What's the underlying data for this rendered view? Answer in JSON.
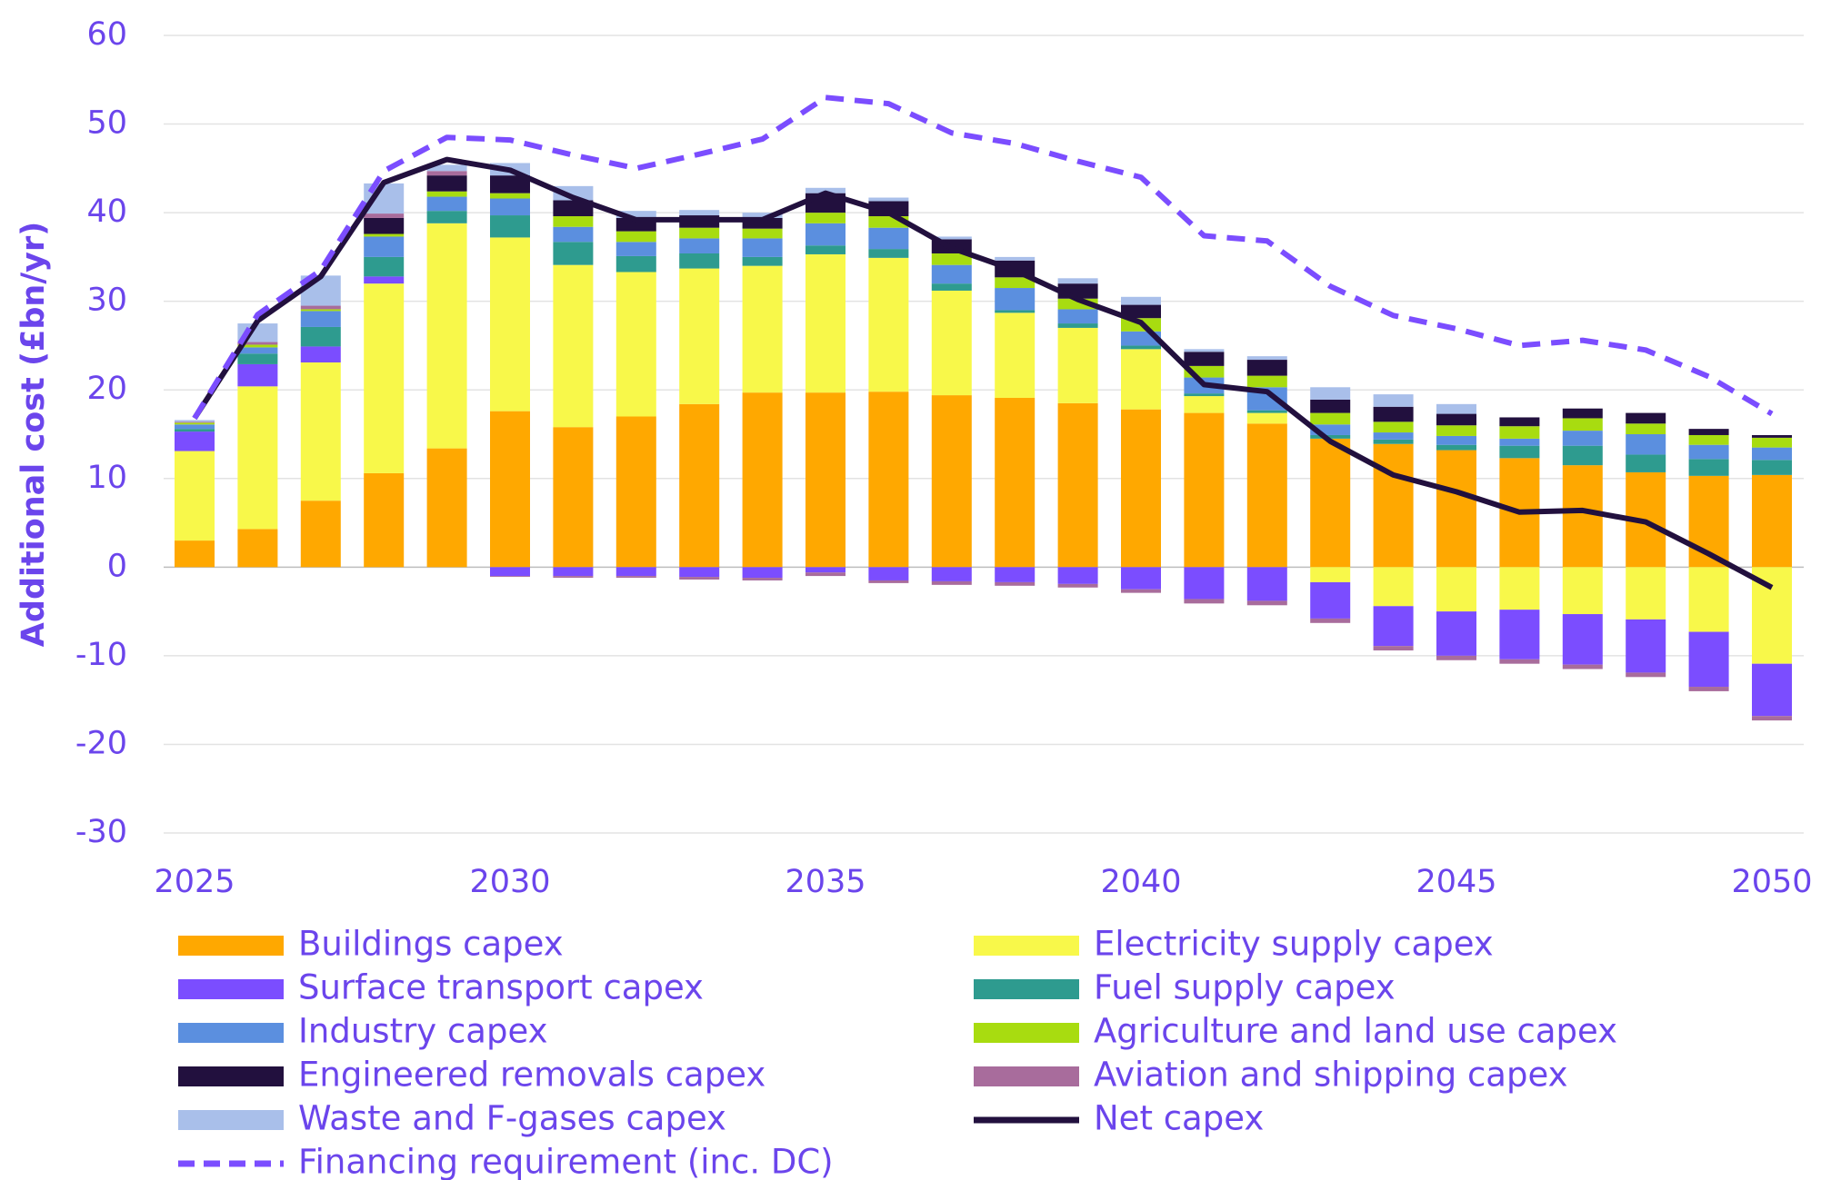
{
  "chart_data": {
    "type": "bar",
    "y_label": "Additional cost (£bn/yr)",
    "x": [
      2025,
      2026,
      2027,
      2028,
      2029,
      2030,
      2031,
      2032,
      2033,
      2034,
      2035,
      2036,
      2037,
      2038,
      2039,
      2040,
      2041,
      2042,
      2043,
      2044,
      2045,
      2046,
      2047,
      2048,
      2049,
      2050
    ],
    "xlim": [
      2025,
      2050
    ],
    "xticks": [
      2025,
      2030,
      2035,
      2040,
      2045,
      2050
    ],
    "ylim": [
      -30,
      60
    ],
    "yticks": [
      -30,
      -20,
      -10,
      0,
      10,
      20,
      30,
      40,
      50,
      60
    ],
    "grid": true,
    "series": [
      {
        "name": "Buildings capex",
        "color": "#ffa800",
        "values": [
          3,
          4.3,
          7.5,
          10.6,
          13.4,
          17.6,
          15.8,
          17,
          18.4,
          19.7,
          19.7,
          19.8,
          19.4,
          19.1,
          18.5,
          17.8,
          17.4,
          16.2,
          14.5,
          13.9,
          13.2,
          12.3,
          11.5,
          10.7,
          10.3,
          10.4
        ]
      },
      {
        "name": "Electricity supply capex",
        "color": "#f8f84a",
        "values": [
          10.1,
          16.1,
          15.6,
          21.4,
          25.4,
          19.6,
          18.3,
          16.3,
          15.3,
          14.3,
          15.6,
          15.1,
          11.8,
          9.6,
          8.5,
          6.8,
          1.9,
          1.2,
          -1.7,
          -4.4,
          -5,
          -4.8,
          -5.3,
          -5.9,
          -7.3,
          -10.9
        ]
      },
      {
        "name": "Surface transport capex",
        "color": "#7b4dff",
        "values": [
          2.2,
          2.5,
          1.8,
          0.8,
          0,
          -1,
          -1,
          -1,
          -1.1,
          -1.2,
          -0.6,
          -1.5,
          -1.6,
          -1.7,
          -1.9,
          -2.5,
          -3.6,
          -3.8,
          -4.1,
          -4.5,
          -5,
          -5.6,
          -5.7,
          -6,
          -6.2,
          -5.9
        ]
      },
      {
        "name": "Fuel supply capex",
        "color": "#2e9b8f",
        "values": [
          0.3,
          1.2,
          2.2,
          2.2,
          1.4,
          2.5,
          2.6,
          1.8,
          1.7,
          1,
          1,
          1,
          0.8,
          0.3,
          0.5,
          0.4,
          0.3,
          0.3,
          0.4,
          0.5,
          0.6,
          1.4,
          2.2,
          2,
          1.9,
          1.7
        ]
      },
      {
        "name": "Industry capex",
        "color": "#5b8fdf",
        "values": [
          0.5,
          0.7,
          1.8,
          2.3,
          1.6,
          1.9,
          1.7,
          1.6,
          1.7,
          2.1,
          2.5,
          2.4,
          2.1,
          2.5,
          1.6,
          1.6,
          1.8,
          2.6,
          1.2,
          0.8,
          1,
          0.8,
          1.7,
          2.3,
          1.6,
          1.4
        ]
      },
      {
        "name": "Agriculture and land use capex",
        "color": "#a8dc10",
        "values": [
          0.2,
          0.3,
          0.2,
          0.3,
          0.6,
          0.6,
          1.2,
          1.2,
          1.2,
          1.1,
          1.2,
          1.3,
          1.3,
          1.2,
          1.2,
          1.5,
          1.3,
          1.3,
          1.3,
          1.2,
          1.2,
          1.4,
          1.4,
          1.2,
          1.1,
          1.1
        ]
      },
      {
        "name": "Engineered removals capex",
        "color": "#22103e",
        "values": [
          0,
          0,
          0,
          1.8,
          1.8,
          2,
          1.8,
          1.5,
          1.4,
          1.2,
          2.2,
          1.7,
          1.6,
          1.9,
          1.7,
          1.5,
          1.6,
          1.8,
          1.5,
          1.7,
          1.3,
          1,
          1.1,
          1.2,
          0.7,
          0.3
        ]
      },
      {
        "name": "Aviation and shipping capex",
        "color": "#a86c9c",
        "values": [
          0.1,
          0.3,
          0.4,
          0.5,
          0.5,
          -0.1,
          -0.2,
          -0.2,
          -0.3,
          -0.3,
          -0.4,
          -0.3,
          -0.4,
          -0.4,
          -0.4,
          -0.4,
          -0.5,
          -0.5,
          -0.5,
          -0.5,
          -0.5,
          -0.5,
          -0.5,
          -0.5,
          -0.5,
          -0.5
        ]
      },
      {
        "name": "Waste and F-gases capex",
        "color": "#a9bfea",
        "values": [
          0.2,
          2.1,
          3.4,
          3.4,
          0.7,
          1.4,
          1.6,
          0.8,
          0.6,
          0.6,
          0.6,
          0.4,
          0.3,
          0.4,
          0.6,
          0.9,
          0.3,
          0.4,
          1.4,
          1.4,
          1.1,
          0,
          0,
          0,
          0,
          0
        ]
      },
      {
        "name": "Net capex",
        "kind": "line",
        "color": "#22103e",
        "values": [
          16.8,
          27.8,
          32.8,
          43.4,
          46,
          44.8,
          41.7,
          39.2,
          39.2,
          39.2,
          42.2,
          40,
          36,
          33.5,
          30.2,
          27.6,
          20.6,
          19.8,
          14.2,
          10.4,
          8.5,
          6.2,
          6.4,
          5.1,
          1.5,
          -2.3
        ]
      },
      {
        "name": "Financing requirement (inc. DC)",
        "kind": "line",
        "dashed": true,
        "color": "#7b4dff",
        "values": [
          16.8,
          28.5,
          33.5,
          44.7,
          48.5,
          48.2,
          46.5,
          45,
          46.6,
          48.3,
          53,
          52.3,
          49,
          47.8,
          45.8,
          44,
          37.4,
          36.8,
          31.7,
          28.4,
          26.9,
          25,
          25.6,
          24.5,
          21.5,
          17.3
        ]
      }
    ]
  }
}
